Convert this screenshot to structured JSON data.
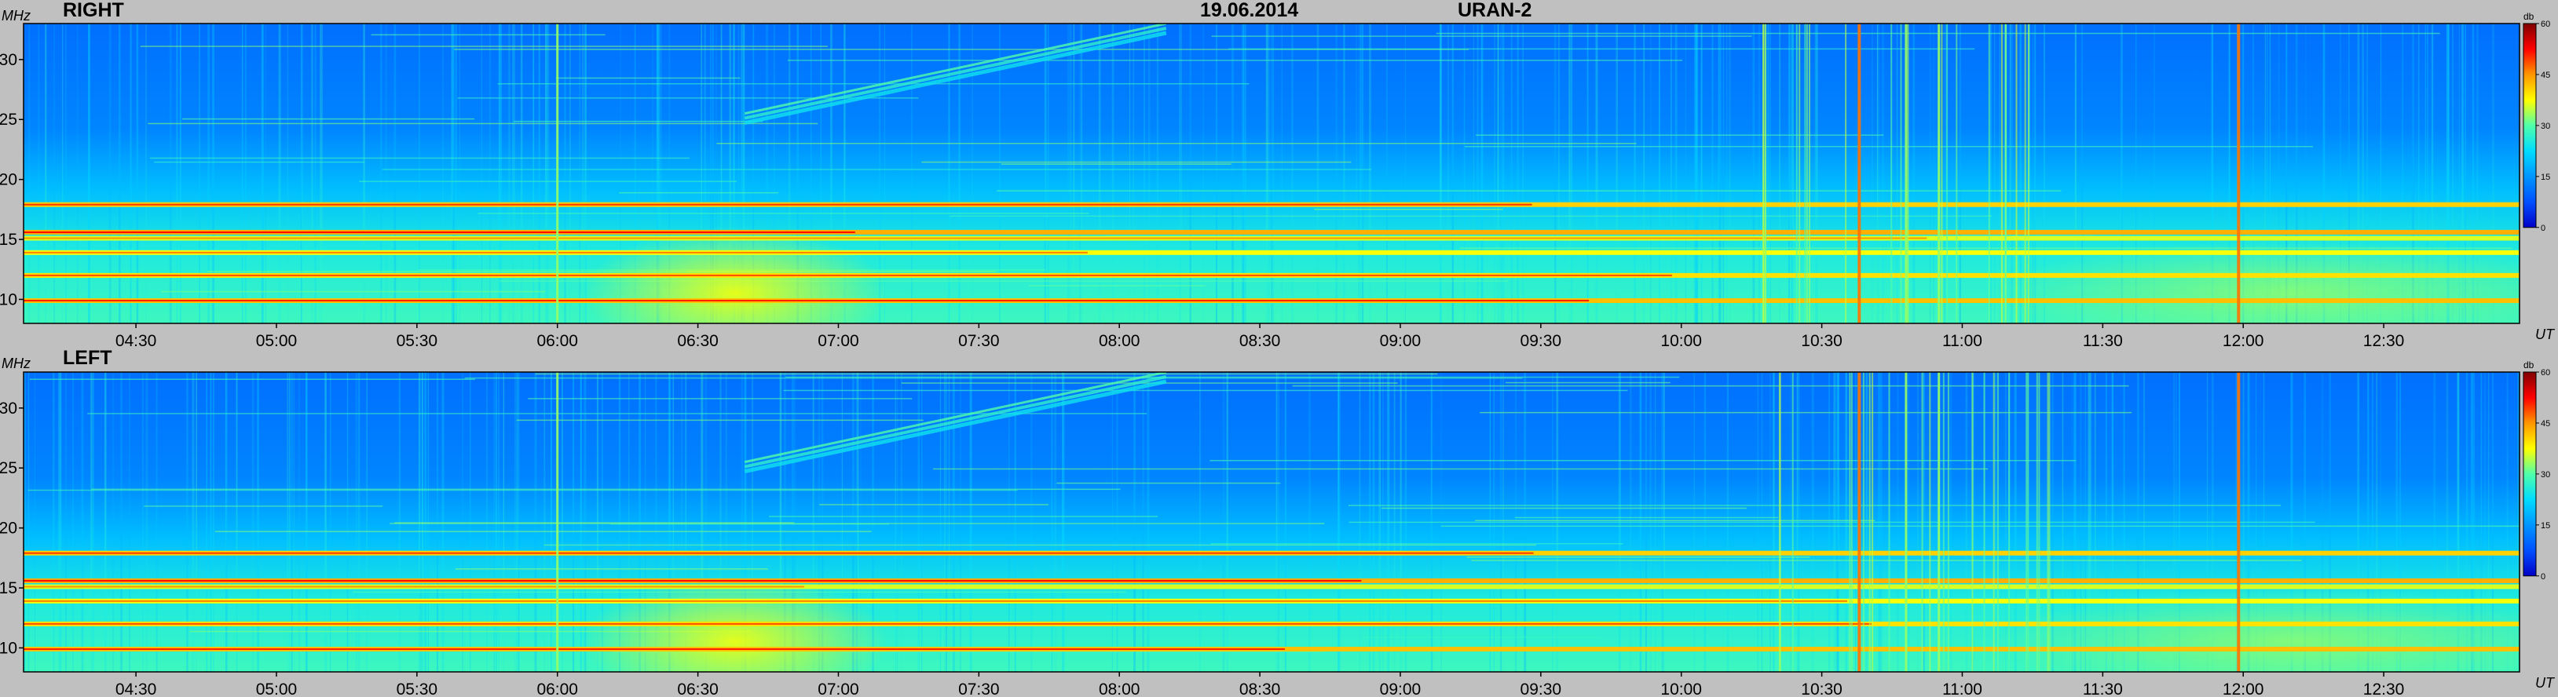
{
  "header": {
    "date": "19.06.2014",
    "instrument": "URAN-2"
  },
  "colors": {
    "page_background": "#c0c0c0",
    "colormap": [
      "#0000c8",
      "#0050ff",
      "#0096ff",
      "#00dcff",
      "#50ffaa",
      "#ffff00",
      "#ff9600",
      "#ff0000",
      "#800000"
    ]
  },
  "colorbar": {
    "unit": "db",
    "ticks": [
      "60",
      "45",
      "30",
      "15",
      "0"
    ],
    "range": [
      0,
      60
    ]
  },
  "chart_data": [
    {
      "type": "heatmap",
      "title": "RIGHT",
      "ylabel": "MHz",
      "xlabel": "UT",
      "x_tick_labels": [
        "04:30",
        "05:00",
        "05:30",
        "06:00",
        "06:30",
        "07:00",
        "07:30",
        "08:00",
        "08:30",
        "09:00",
        "09:30",
        "10:00",
        "10:30",
        "11:00",
        "11:30",
        "12:00",
        "12:30"
      ],
      "x_range": [
        "04:06",
        "12:59"
      ],
      "y_tick_labels": [
        "30",
        "25",
        "20",
        "15",
        "10"
      ],
      "y_range": [
        8,
        33
      ],
      "z_range": [
        0,
        60
      ],
      "horizontal_bands_mhz": [
        17.9,
        15.6,
        15.1,
        13.9,
        12.0,
        9.9
      ],
      "vertical_bursts_ut": [
        "06:00",
        "10:38",
        "10:48",
        "10:55",
        "11:59"
      ],
      "drifting_features": [
        {
          "start_ut": "06:40",
          "end_ut": "08:10",
          "start_mhz": 25.5,
          "end_mhz": 33
        }
      ]
    },
    {
      "type": "heatmap",
      "title": "LEFT",
      "ylabel": "MHz",
      "xlabel": "UT",
      "x_tick_labels": [
        "04:30",
        "05:00",
        "05:30",
        "06:00",
        "06:30",
        "07:00",
        "07:30",
        "08:00",
        "08:30",
        "09:00",
        "09:30",
        "10:00",
        "10:30",
        "11:00",
        "11:30",
        "12:00",
        "12:30"
      ],
      "x_range": [
        "04:06",
        "12:59"
      ],
      "y_tick_labels": [
        "30",
        "25",
        "20",
        "15",
        "10"
      ],
      "y_range": [
        8,
        33
      ],
      "z_range": [
        0,
        60
      ],
      "horizontal_bands_mhz": [
        17.9,
        15.6,
        15.1,
        13.9,
        12.0,
        9.9
      ],
      "vertical_bursts_ut": [
        "06:00",
        "10:38",
        "10:48",
        "10:55",
        "11:59"
      ],
      "drifting_features": [
        {
          "start_ut": "06:40",
          "end_ut": "08:10",
          "start_mhz": 25.5,
          "end_mhz": 33
        }
      ]
    }
  ]
}
